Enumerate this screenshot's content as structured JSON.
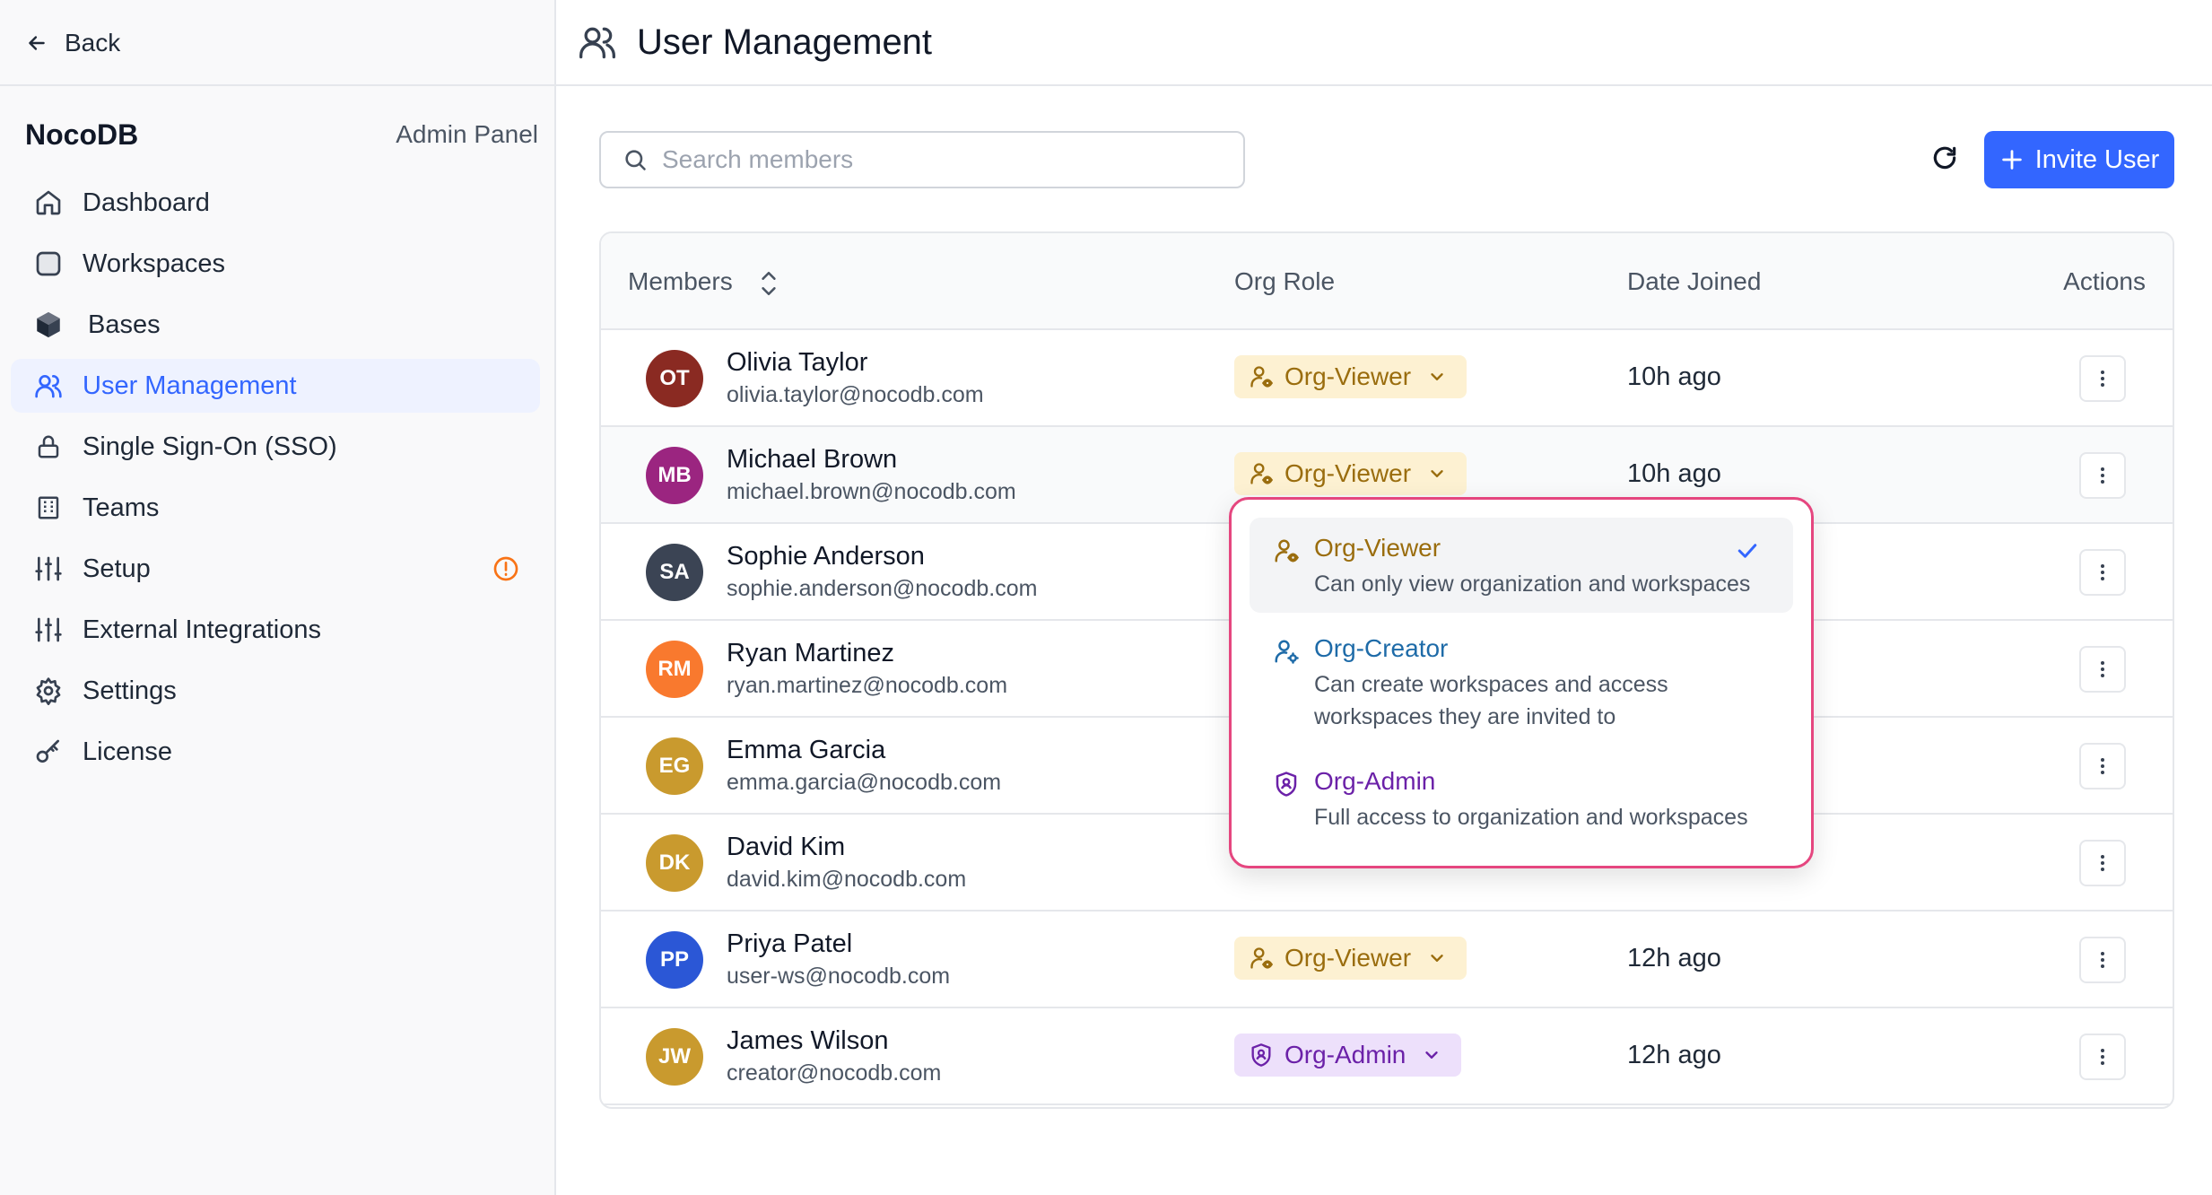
{
  "sidebar": {
    "back_label": "Back",
    "brand": "NocoDB",
    "panel_label": "Admin Panel",
    "items": [
      {
        "label": "Dashboard",
        "icon": "home-icon"
      },
      {
        "label": "Workspaces",
        "icon": "workspace-icon"
      },
      {
        "label": "Bases",
        "icon": "base-cube-icon"
      },
      {
        "label": "User Management",
        "icon": "users-icon",
        "active": true
      },
      {
        "label": "Single Sign-On (SSO)",
        "icon": "lock-icon"
      },
      {
        "label": "Teams",
        "icon": "building-icon"
      },
      {
        "label": "Setup",
        "icon": "sliders-icon",
        "badge": "warning-icon"
      },
      {
        "label": "External Integrations",
        "icon": "sliders-icon"
      },
      {
        "label": "Settings",
        "icon": "gear-icon"
      },
      {
        "label": "License",
        "icon": "key-icon"
      }
    ]
  },
  "header": {
    "title": "User Management",
    "icon": "users-icon"
  },
  "toolbar": {
    "search_placeholder": "Search members",
    "invite_label": "Invite User"
  },
  "table": {
    "columns": {
      "members": "Members",
      "org_role": "Org Role",
      "date_joined": "Date Joined",
      "actions": "Actions"
    },
    "rows": [
      {
        "initials": "OT",
        "name": "Olivia Taylor",
        "email": "olivia.taylor@nocodb.com",
        "role": "Org-Viewer",
        "role_type": "viewer",
        "joined": "10h ago",
        "avatar_color": "#8a2a22"
      },
      {
        "initials": "MB",
        "name": "Michael Brown",
        "email": "michael.brown@nocodb.com",
        "role": "Org-Viewer",
        "role_type": "viewer",
        "joined": "10h ago",
        "avatar_color": "#9b2580"
      },
      {
        "initials": "SA",
        "name": "Sophie Anderson",
        "email": "sophie.anderson@nocodb.com",
        "role": "",
        "role_type": "",
        "joined": "",
        "avatar_color": "#3b4454"
      },
      {
        "initials": "RM",
        "name": "Ryan Martinez",
        "email": "ryan.martinez@nocodb.com",
        "role": "",
        "role_type": "",
        "joined": "",
        "avatar_color": "#f9792e"
      },
      {
        "initials": "EG",
        "name": "Emma Garcia",
        "email": "emma.garcia@nocodb.com",
        "role": "",
        "role_type": "",
        "joined": "",
        "avatar_color": "#c99a2e"
      },
      {
        "initials": "DK",
        "name": "David Kim",
        "email": "david.kim@nocodb.com",
        "role": "",
        "role_type": "",
        "joined": "",
        "avatar_color": "#c99a2e"
      },
      {
        "initials": "PP",
        "name": "Priya Patel",
        "email": "user-ws@nocodb.com",
        "role": "Org-Viewer",
        "role_type": "viewer",
        "joined": "12h ago",
        "avatar_color": "#2b57d6"
      },
      {
        "initials": "JW",
        "name": "James Wilson",
        "email": "creator@nocodb.com",
        "role": "Org-Admin",
        "role_type": "admin",
        "joined": "12h ago",
        "avatar_color": "#c99a2e"
      }
    ]
  },
  "dropdown": {
    "options": [
      {
        "title": "Org-Viewer",
        "desc": "Can only view organization and workspaces",
        "selected": true
      },
      {
        "title": "Org-Creator",
        "desc": "Can create workspaces and access workspaces they are invited to",
        "selected": false
      },
      {
        "title": "Org-Admin",
        "desc": "Full access to organization and workspaces",
        "selected": false
      }
    ]
  }
}
